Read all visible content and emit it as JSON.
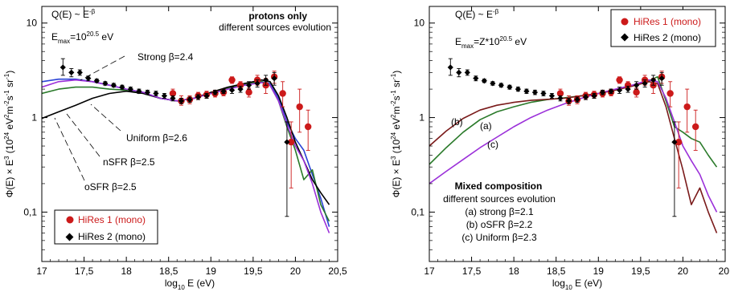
{
  "chart_data": [
    {
      "type": "scatter",
      "panel": "left",
      "xlabel": "log₁₀ E (eV)",
      "ylabel": "Φ(E) × E³ (10²⁴ eV²m⁻²s⁻¹sr⁻¹)",
      "xlim": [
        17,
        20.5
      ],
      "ylim": [
        0.03,
        15
      ],
      "yscale": "log",
      "x_ticks": [
        "17",
        "17,5",
        "18",
        "18,5",
        "19",
        "19,5",
        "20",
        "20,5"
      ],
      "y_ticks": [
        "0,1",
        "1",
        "10"
      ],
      "formula": "Q(E) ~ E",
      "formula_exp": "-β",
      "emax_label": "E",
      "emax_sub": "max",
      "emax_value": "=10",
      "emax_exp": "20.5",
      "emax_unit": " eV",
      "heading": "protons only",
      "subheading": "different sources evolution",
      "curve_labels": [
        "Strong β=2.4",
        "Uniform β=2.6",
        "nSFR β=2.5",
        "oSFR β=2.5"
      ],
      "legend": [
        "HiRes 1 (mono)",
        "HiRes 2 (mono)"
      ],
      "series": [
        {
          "name": "HiRes 1 (mono)",
          "color": "#cc1a1a",
          "x": [
            18.55,
            18.65,
            18.75,
            18.85,
            18.95,
            19.05,
            19.15,
            19.25,
            19.35,
            19.45,
            19.55,
            19.65,
            19.75,
            19.85,
            19.95,
            20.05,
            20.15
          ],
          "y": [
            1.8,
            1.5,
            1.55,
            1.7,
            1.75,
            1.8,
            1.85,
            2.5,
            2.2,
            1.85,
            2.5,
            2.2,
            2.7,
            1.8,
            0.55,
            1.3,
            0.8
          ],
          "err_hi": [
            2.0,
            1.7,
            1.7,
            1.85,
            1.9,
            1.95,
            2.0,
            2.7,
            2.4,
            2.05,
            2.8,
            2.6,
            3.1,
            2.4,
            0.9,
            2.0,
            1.2
          ],
          "err_lo": [
            1.6,
            1.35,
            1.4,
            1.55,
            1.6,
            1.65,
            1.7,
            2.3,
            2.0,
            1.65,
            2.2,
            1.8,
            2.3,
            1.3,
            0.18,
            0.7,
            0.45
          ]
        },
        {
          "name": "HiRes 2 (mono)",
          "color": "#000000",
          "x": [
            17.25,
            17.35,
            17.45,
            17.55,
            17.65,
            17.75,
            17.85,
            17.95,
            18.05,
            18.15,
            18.25,
            18.35,
            18.45,
            18.55,
            18.65,
            18.75,
            18.85,
            18.95,
            19.05,
            19.15,
            19.25,
            19.35,
            19.45,
            19.55,
            19.65,
            19.75,
            19.9
          ],
          "y": [
            3.4,
            3.0,
            3.0,
            2.6,
            2.45,
            2.3,
            2.2,
            2.1,
            2.0,
            1.9,
            1.85,
            1.8,
            1.7,
            1.6,
            1.5,
            1.55,
            1.65,
            1.7,
            1.85,
            1.9,
            1.95,
            2.0,
            2.2,
            2.3,
            2.5,
            2.6,
            0.55
          ],
          "err_hi": [
            4.2,
            3.3,
            3.2,
            2.75,
            2.55,
            2.4,
            2.3,
            2.2,
            2.1,
            2.0,
            1.95,
            1.9,
            1.8,
            1.7,
            1.6,
            1.65,
            1.75,
            1.8,
            1.95,
            2.0,
            2.1,
            2.15,
            2.4,
            2.5,
            2.8,
            3.0,
            0.9
          ],
          "err_lo": [
            2.8,
            2.7,
            2.8,
            2.45,
            2.35,
            2.2,
            2.1,
            2.0,
            1.9,
            1.8,
            1.75,
            1.7,
            1.6,
            1.5,
            1.4,
            1.45,
            1.55,
            1.6,
            1.75,
            1.8,
            1.8,
            1.85,
            2.0,
            2.1,
            2.2,
            2.2,
            0.09
          ]
        },
        {
          "name": "Strong β=2.4",
          "color": "#2a43d6",
          "mode": "line",
          "x": [
            17.0,
            17.2,
            17.4,
            17.6,
            17.8,
            18.0,
            18.2,
            18.4,
            18.6,
            18.8,
            19.0,
            19.2,
            19.4,
            19.6,
            19.7,
            19.8,
            19.9,
            20.0,
            20.1,
            20.2,
            20.3,
            20.4
          ],
          "y": [
            2.4,
            2.55,
            2.55,
            2.4,
            2.2,
            2.0,
            1.85,
            1.6,
            1.5,
            1.6,
            1.8,
            2.0,
            2.2,
            2.4,
            2.3,
            1.6,
            0.9,
            0.6,
            0.45,
            0.25,
            0.14,
            0.07
          ]
        },
        {
          "name": "Uniform β=2.6",
          "color": "#2a7a2a",
          "mode": "line",
          "x": [
            17.0,
            17.2,
            17.4,
            17.6,
            17.8,
            18.0,
            18.2,
            18.4,
            18.6,
            18.8,
            19.0,
            19.2,
            19.4,
            19.6,
            19.7,
            19.8,
            19.9,
            20.0,
            20.1,
            20.2,
            20.3,
            20.4
          ],
          "y": [
            1.8,
            2.0,
            2.1,
            2.1,
            2.0,
            1.95,
            1.8,
            1.6,
            1.5,
            1.6,
            1.85,
            2.05,
            2.25,
            2.4,
            2.2,
            1.5,
            0.8,
            0.45,
            0.22,
            0.28,
            0.12,
            0.08
          ]
        },
        {
          "name": "nSFR β=2.5",
          "color": "#000000",
          "mode": "line",
          "x": [
            17.0,
            17.2,
            17.4,
            17.6,
            17.8,
            18.0,
            18.2,
            18.4,
            18.6,
            18.8,
            19.0,
            19.2,
            19.4,
            19.6,
            19.7,
            19.8,
            19.9,
            20.0,
            20.1,
            20.2,
            20.3,
            20.4
          ],
          "y": [
            0.98,
            1.15,
            1.35,
            1.6,
            1.8,
            1.9,
            1.8,
            1.6,
            1.5,
            1.6,
            1.85,
            2.1,
            2.3,
            2.5,
            2.4,
            1.7,
            1.0,
            0.55,
            0.35,
            0.22,
            0.16,
            0.12
          ]
        },
        {
          "name": "oSFR β=2.5",
          "color": "#9b30d9",
          "mode": "line",
          "x": [
            17.0,
            17.2,
            17.4,
            17.6,
            17.8,
            18.0,
            18.2,
            18.4,
            18.6,
            18.8,
            19.0,
            19.2,
            19.4,
            19.6,
            19.7,
            19.8,
            19.9,
            20.0,
            20.1,
            20.2,
            20.3,
            20.4
          ],
          "y": [
            2.1,
            2.4,
            2.5,
            2.4,
            2.2,
            2.0,
            1.85,
            1.6,
            1.5,
            1.6,
            1.8,
            2.0,
            2.2,
            2.35,
            2.2,
            1.5,
            0.85,
            0.5,
            0.35,
            0.2,
            0.1,
            0.06
          ]
        }
      ]
    },
    {
      "type": "scatter",
      "panel": "right",
      "xlabel": "log₁₀ E (eV)",
      "ylabel": "Φ(E) × E³ (10²⁴ eV²m⁻²s⁻¹sr⁻¹)",
      "xlim": [
        17,
        20.5
      ],
      "ylim": [
        0.03,
        15
      ],
      "yscale": "log",
      "x_ticks": [
        "17",
        "17,5",
        "18",
        "18,5",
        "19",
        "19,5",
        "20",
        "20,"
      ],
      "y_ticks": [
        "0,1",
        "1",
        "10"
      ],
      "formula": "Q(E) ~ E",
      "formula_exp": "-β",
      "emax_label": "E",
      "emax_sub": "max",
      "emax_value": "=Z*10",
      "emax_exp": "20.5",
      "emax_unit": " eV",
      "heading": "Mixed composition",
      "subheading": "different sources evolution",
      "curve_notes": [
        "(a) strong β=2.1",
        "(b) oSFR β=2.2",
        "(c) Uniform β=2.3"
      ],
      "curve_tags": [
        "(b)",
        "(a)",
        "(c)"
      ],
      "legend": [
        "HiRes 1 (mono)",
        "HiRes 2 (mono)"
      ],
      "series": [
        {
          "name": "HiRes 1 (mono)",
          "color": "#cc1a1a",
          "x": [
            18.55,
            18.65,
            18.75,
            18.85,
            18.95,
            19.05,
            19.15,
            19.25,
            19.35,
            19.45,
            19.55,
            19.65,
            19.75,
            19.85,
            19.95,
            20.05,
            20.15
          ],
          "y": [
            1.8,
            1.5,
            1.55,
            1.7,
            1.75,
            1.8,
            1.85,
            2.5,
            2.2,
            1.85,
            2.5,
            2.2,
            2.7,
            1.8,
            0.55,
            1.3,
            0.8
          ],
          "err_hi": [
            2.0,
            1.7,
            1.7,
            1.85,
            1.9,
            1.95,
            2.0,
            2.7,
            2.4,
            2.05,
            2.8,
            2.6,
            3.1,
            2.4,
            0.9,
            2.0,
            1.2
          ],
          "err_lo": [
            1.6,
            1.35,
            1.4,
            1.55,
            1.6,
            1.65,
            1.7,
            2.3,
            2.0,
            1.65,
            2.2,
            1.8,
            2.3,
            1.3,
            0.18,
            0.7,
            0.45
          ]
        },
        {
          "name": "HiRes 2 (mono)",
          "color": "#000000",
          "x": [
            17.25,
            17.35,
            17.45,
            17.55,
            17.65,
            17.75,
            17.85,
            17.95,
            18.05,
            18.15,
            18.25,
            18.35,
            18.45,
            18.55,
            18.65,
            18.75,
            18.85,
            18.95,
            19.05,
            19.15,
            19.25,
            19.35,
            19.45,
            19.55,
            19.65,
            19.75,
            19.9
          ],
          "y": [
            3.4,
            3.0,
            3.0,
            2.6,
            2.45,
            2.3,
            2.2,
            2.1,
            2.0,
            1.9,
            1.85,
            1.8,
            1.7,
            1.6,
            1.5,
            1.55,
            1.65,
            1.7,
            1.85,
            1.9,
            1.95,
            2.0,
            2.2,
            2.3,
            2.5,
            2.6,
            0.55
          ],
          "err_hi": [
            4.2,
            3.3,
            3.2,
            2.75,
            2.55,
            2.4,
            2.3,
            2.2,
            2.1,
            2.0,
            1.95,
            1.9,
            1.8,
            1.7,
            1.6,
            1.65,
            1.75,
            1.8,
            1.95,
            2.0,
            2.1,
            2.15,
            2.4,
            2.5,
            2.8,
            3.0,
            0.9
          ],
          "err_lo": [
            2.8,
            2.7,
            2.8,
            2.45,
            2.35,
            2.2,
            2.1,
            2.0,
            1.9,
            1.8,
            1.75,
            1.7,
            1.6,
            1.5,
            1.4,
            1.45,
            1.55,
            1.6,
            1.75,
            1.8,
            1.8,
            1.85,
            2.0,
            2.1,
            2.2,
            2.2,
            0.09
          ]
        },
        {
          "name": "(a)",
          "color": "#2a7a2a",
          "mode": "line",
          "x": [
            17.0,
            17.2,
            17.4,
            17.6,
            17.8,
            18.0,
            18.2,
            18.4,
            18.6,
            18.8,
            19.0,
            19.2,
            19.4,
            19.6,
            19.7,
            19.8,
            19.9,
            20.0,
            20.1,
            20.2,
            20.3,
            20.4
          ],
          "y": [
            0.32,
            0.48,
            0.7,
            0.95,
            1.15,
            1.3,
            1.45,
            1.55,
            1.62,
            1.7,
            1.8,
            1.95,
            2.15,
            2.45,
            2.7,
            1.5,
            0.8,
            0.7,
            0.6,
            0.55,
            0.4,
            0.3
          ]
        },
        {
          "name": "(b)",
          "color": "#7a1a1a",
          "mode": "line",
          "x": [
            17.0,
            17.2,
            17.4,
            17.6,
            17.8,
            18.0,
            18.2,
            18.4,
            18.6,
            18.8,
            19.0,
            19.2,
            19.4,
            19.6,
            19.7,
            19.8,
            19.9,
            20.0,
            20.1,
            20.2,
            20.3,
            20.4
          ],
          "y": [
            0.5,
            0.72,
            0.98,
            1.2,
            1.35,
            1.45,
            1.52,
            1.56,
            1.6,
            1.7,
            1.8,
            1.95,
            2.15,
            2.4,
            2.3,
            1.3,
            0.6,
            0.28,
            0.12,
            0.18,
            0.1,
            0.06
          ]
        },
        {
          "name": "(c)",
          "color": "#9b30d9",
          "mode": "line",
          "x": [
            17.0,
            17.2,
            17.4,
            17.6,
            17.8,
            18.0,
            18.2,
            18.4,
            18.6,
            18.8,
            19.0,
            19.2,
            19.4,
            19.6,
            19.7,
            19.8,
            19.9,
            20.0,
            20.1,
            20.2,
            20.3,
            20.4
          ],
          "y": [
            0.2,
            0.27,
            0.36,
            0.48,
            0.62,
            0.8,
            1.0,
            1.2,
            1.4,
            1.6,
            1.8,
            2.0,
            2.2,
            2.5,
            2.4,
            1.6,
            0.9,
            0.5,
            0.35,
            0.25,
            0.15,
            0.1
          ]
        }
      ]
    }
  ]
}
